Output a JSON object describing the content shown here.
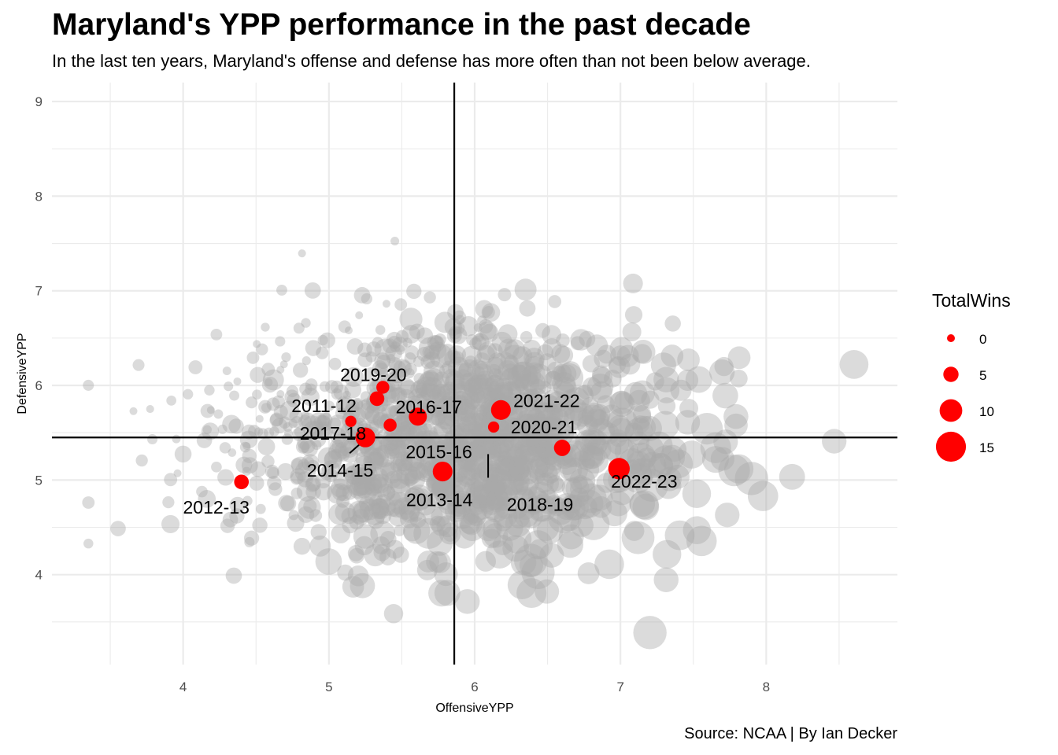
{
  "chart_data": {
    "type": "scatter",
    "title": "Maryland's YPP performance in the past decade",
    "subtitle": "In the last ten years, Maryland's offense and defense has more often than not been below average.",
    "caption": "Source: NCAA | By Ian Decker",
    "xlabel": "OffensiveYPP",
    "ylabel": "DefensiveYPP",
    "xlim": [
      3.1,
      8.9
    ],
    "ylim": [
      3.05,
      9.2
    ],
    "x_ticks": [
      "4",
      "5",
      "6",
      "7",
      "8"
    ],
    "y_ticks": [
      "4",
      "5",
      "6",
      "7",
      "8",
      "9"
    ],
    "grid": true,
    "reference_lines": {
      "x": 5.86,
      "y": 5.45
    },
    "size_legend": {
      "title": "TotalWins",
      "position": "right",
      "entries": [
        {
          "label": "0",
          "value": 0
        },
        {
          "label": "5",
          "value": 5
        },
        {
          "label": "10",
          "value": 10
        },
        {
          "label": "15",
          "value": 15
        }
      ]
    },
    "colors": {
      "highlight": "#ff0000",
      "background_points": "#a9a9a9"
    },
    "highlight_series": [
      {
        "label": "2011-12",
        "x": 5.15,
        "y": 5.62,
        "wins": 2
      },
      {
        "label": "2012-13",
        "x": 4.4,
        "y": 4.98,
        "wins": 4
      },
      {
        "label": "2013-14",
        "x": 5.78,
        "y": 5.09,
        "wins": 7
      },
      {
        "label": "2014-15",
        "x": 5.25,
        "y": 5.45,
        "wins": 7
      },
      {
        "label": "2015-16",
        "x": 5.42,
        "y": 5.58,
        "wins": 3
      },
      {
        "label": "2016-17",
        "x": 5.61,
        "y": 5.67,
        "wins": 6
      },
      {
        "label": "2017-18",
        "x": 5.33,
        "y": 5.86,
        "wins": 4
      },
      {
        "label": "2018-19",
        "x": 6.6,
        "y": 5.34,
        "wins": 5
      },
      {
        "label": "2019-20",
        "x": 5.37,
        "y": 5.98,
        "wins": 3
      },
      {
        "label": "2020-21",
        "x": 6.13,
        "y": 5.56,
        "wins": 2
      },
      {
        "label": "2021-22",
        "x": 6.18,
        "y": 5.74,
        "wins": 7
      },
      {
        "label": "2022-23",
        "x": 6.99,
        "y": 5.12,
        "wins": 8
      }
    ]
  }
}
